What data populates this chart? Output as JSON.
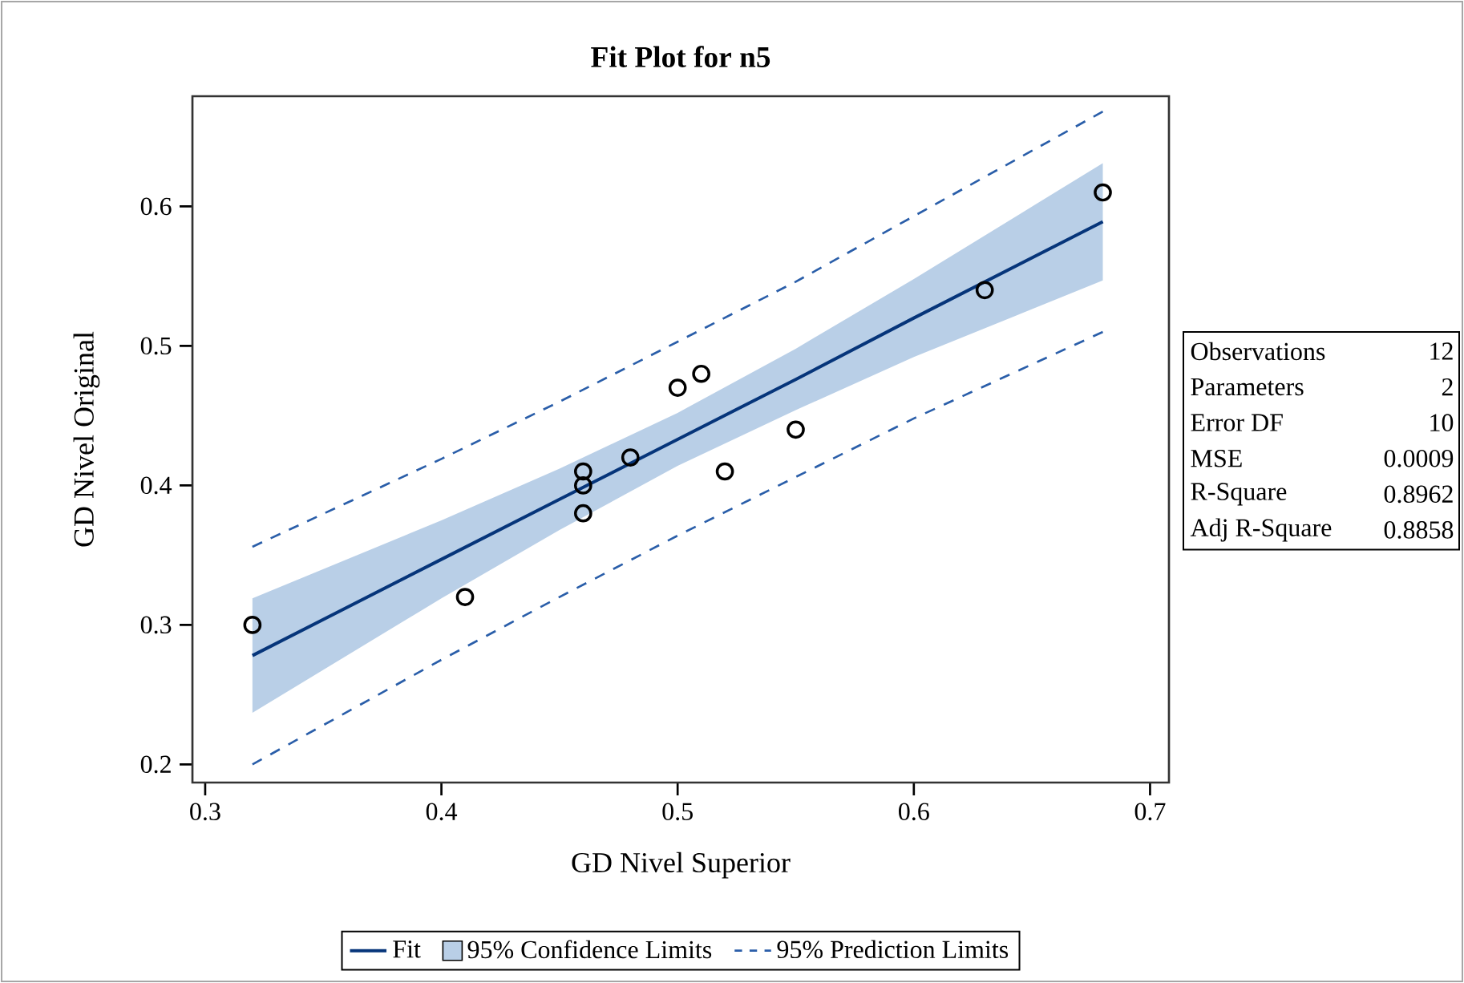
{
  "chart_data": {
    "type": "scatter",
    "title": "Fit Plot for n5",
    "xlabel": "GD Nivel Superior",
    "ylabel": "GD Nivel Original",
    "xlim": [
      0.2946,
      0.708
    ],
    "ylim": [
      0.187,
      0.679
    ],
    "xticks": [
      0.3,
      0.4,
      0.5,
      0.6,
      0.7
    ],
    "yticks": [
      0.2,
      0.3,
      0.4,
      0.5,
      0.6
    ],
    "legend": "bottom",
    "grid": false,
    "series": [
      {
        "name": "Fit",
        "type": "line",
        "color": "#06357a",
        "line_style": "solid",
        "marker": "none",
        "x": [
          0.32,
          0.4,
          0.45,
          0.5,
          0.55,
          0.6,
          0.68
        ],
        "values": [
          0.278,
          0.347,
          0.39,
          0.433,
          0.476,
          0.52,
          0.589
        ],
        "upper": [
          0.319,
          0.375,
          0.412,
          0.452,
          0.498,
          0.548,
          0.631
        ],
        "lower": [
          0.237,
          0.319,
          0.368,
          0.414,
          0.454,
          0.492,
          0.547
        ]
      },
      {
        "name": "95% Prediction Limits",
        "type": "line",
        "color": "#2a5ea9",
        "line_style": "dashed",
        "marker": "none",
        "x": [
          0.32,
          0.4,
          0.45,
          0.5,
          0.55,
          0.6,
          0.68
        ],
        "values": [
          0.356,
          0.419,
          0.46,
          0.503,
          0.546,
          0.593,
          0.668
        ]
      },
      {
        "type": "line",
        "color": "#2a5ea9",
        "line_style": "dashed",
        "marker": "none",
        "x": [
          0.32,
          0.4,
          0.45,
          0.5,
          0.55,
          0.6,
          0.68
        ],
        "values": [
          0.2,
          0.275,
          0.32,
          0.364,
          0.406,
          0.448,
          0.51
        ]
      },
      {
        "color": "#000000",
        "marker": "circle",
        "x": [
          0.32,
          0.41,
          0.46,
          0.46,
          0.46,
          0.48,
          0.5,
          0.51,
          0.52,
          0.55,
          0.63,
          0.68
        ],
        "values": [
          0.3,
          0.32,
          0.41,
          0.4,
          0.38,
          0.42,
          0.47,
          0.48,
          0.41,
          0.44,
          0.54,
          0.61
        ]
      }
    ],
    "annotations": [
      "Observations",
      "12",
      "Parameters",
      "2",
      "Error DF",
      "10",
      "MSE",
      "0.0009",
      "R-Square",
      "0.8962",
      "Adj R-Square",
      "0.8858",
      "95% Confidence Limits"
    ]
  }
}
